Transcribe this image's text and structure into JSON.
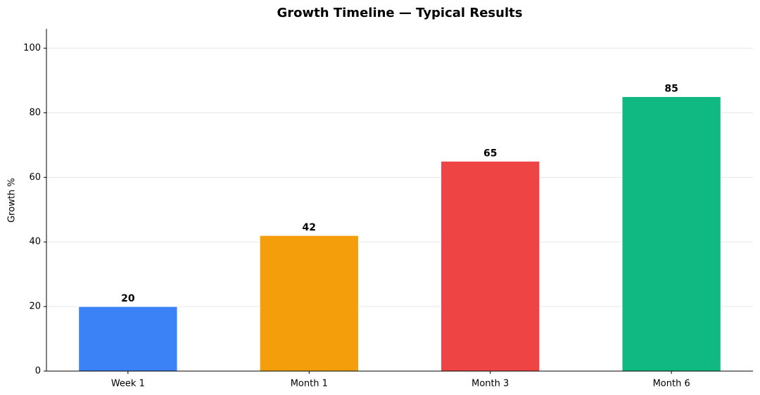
{
  "chart_data": {
    "type": "bar",
    "title": "Growth Timeline — Typical Results",
    "ylabel": "Growth %",
    "categories": [
      "Week 1",
      "Month 1",
      "Month 3",
      "Month 6"
    ],
    "values": [
      20,
      42,
      65,
      85
    ],
    "colors": [
      "#3b82f6",
      "#f59e0b",
      "#ef4444",
      "#10b981"
    ],
    "ylim": [
      0,
      106
    ],
    "yticks": [
      0,
      20,
      40,
      60,
      80,
      100
    ],
    "grid": true,
    "data_labels": true
  }
}
